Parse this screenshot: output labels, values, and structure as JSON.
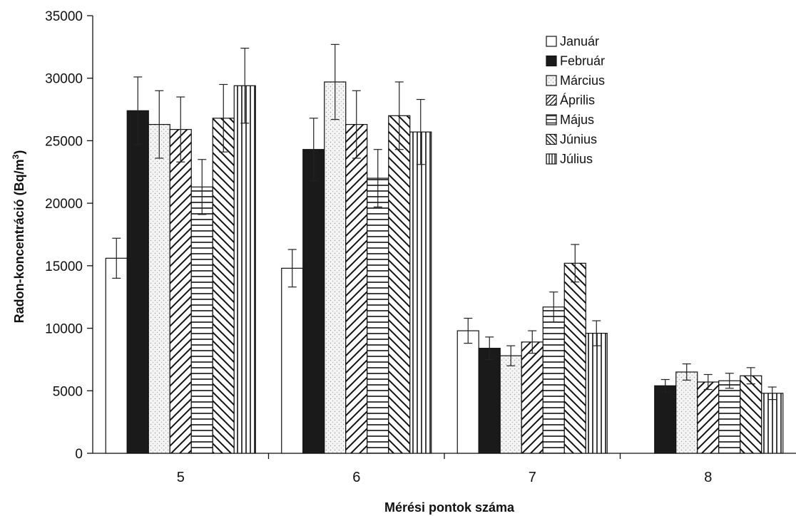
{
  "chart_data": {
    "type": "bar",
    "title": "",
    "xlabel": "Mérési pontok száma",
    "ylabel": "Radon-koncentráció (Bq/m",
    "ylabel_sup": "3",
    "ylabel_close": ")",
    "ylim": [
      0,
      35000
    ],
    "yticks": [
      0,
      5000,
      10000,
      15000,
      20000,
      25000,
      30000,
      35000
    ],
    "grid": false,
    "legend_position": "top-right",
    "categories": [
      "5",
      "6",
      "7",
      "8"
    ],
    "series": [
      {
        "name": "Január",
        "pattern": "white",
        "values": [
          15600,
          14800,
          9800,
          null
        ],
        "errors": [
          1600,
          1500,
          1000,
          null
        ]
      },
      {
        "name": "Február",
        "pattern": "black",
        "values": [
          27400,
          24300,
          8400,
          5400
        ],
        "errors": [
          2700,
          2500,
          900,
          500
        ]
      },
      {
        "name": "Március",
        "pattern": "stipple",
        "values": [
          26300,
          29700,
          7800,
          6500
        ],
        "errors": [
          2700,
          3000,
          800,
          650
        ]
      },
      {
        "name": "Április",
        "pattern": "diag-up",
        "values": [
          25900,
          26300,
          8900,
          5700
        ],
        "errors": [
          2600,
          2700,
          900,
          600
        ]
      },
      {
        "name": "Május",
        "pattern": "horiz",
        "values": [
          21300,
          22000,
          11700,
          5800
        ],
        "errors": [
          2200,
          2300,
          1200,
          600
        ]
      },
      {
        "name": "Június",
        "pattern": "diag-down",
        "values": [
          26800,
          27000,
          15200,
          6200
        ],
        "errors": [
          2700,
          2700,
          1500,
          650
        ]
      },
      {
        "name": "Július",
        "pattern": "vert",
        "values": [
          29400,
          25700,
          9600,
          4800
        ],
        "errors": [
          3000,
          2600,
          1000,
          500
        ]
      }
    ]
  }
}
